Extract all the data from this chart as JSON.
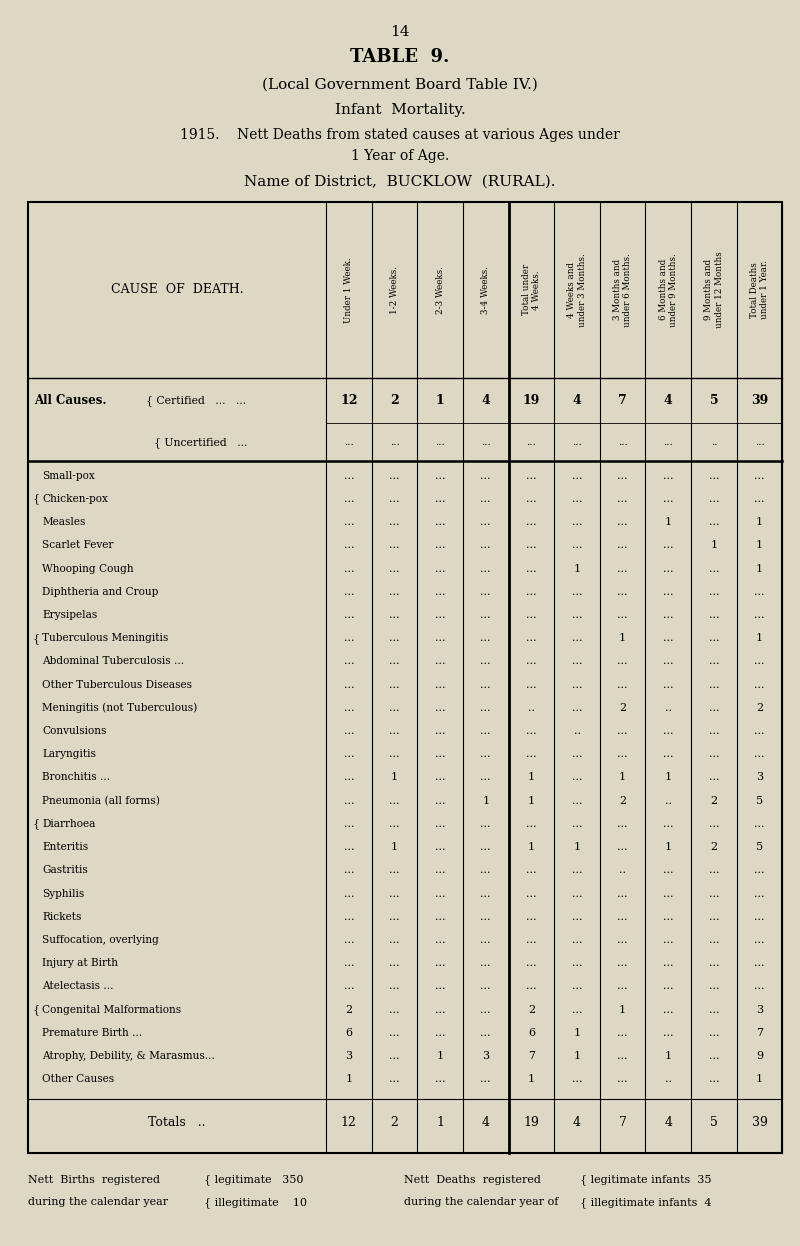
{
  "page_number": "14",
  "title1": "TABLE  9.",
  "title2": "(Local Government Board Table IV.)",
  "title3": "Infant  Mortality.",
  "title4": "1915.    Nett Deaths from stated causes at various Ages under",
  "title4b": "1 Year of Age.",
  "title5": "Name of District,  BUCKLOW  (RURAL).",
  "bg_color": "#ddd8c4",
  "col_headers": [
    "Under 1 Week.",
    "1-2 Weeks.",
    "2-3 Weeks.",
    "3-4 Weeks.",
    "Total under\n4 Weeks.",
    "4 Weeks and\nunder 3 Months.",
    "3 Months and\nunder 6 Months.",
    "6 Months and\nunder 9 Months.",
    "9 Months and\nunder 12 Months",
    "Total Deaths\nunder 1 Year."
  ],
  "cause_rows": [
    {
      "cause": "Small-pox",
      "vals": [
        "...",
        "...",
        "...",
        "...",
        "...",
        "...",
        "...",
        "...",
        "...",
        "..."
      ],
      "bracket": "none"
    },
    {
      "cause": "Chicken-pox",
      "vals": [
        "...",
        "...",
        "...",
        "...",
        "...",
        "...",
        "...",
        "...",
        "...",
        "..."
      ],
      "bracket": "top"
    },
    {
      "cause": "Measles",
      "vals": [
        "...",
        "...",
        "...",
        "...",
        "...",
        "...",
        "...",
        "1",
        "...",
        "1"
      ],
      "bracket": "mid"
    },
    {
      "cause": "Scarlet Fever",
      "vals": [
        "...",
        "...",
        "...",
        "...",
        "...",
        "...",
        "...",
        "...",
        "1",
        "1"
      ],
      "bracket": "mid"
    },
    {
      "cause": "Whooping Cough",
      "vals": [
        "...",
        "...",
        "...",
        "...",
        "...",
        "1",
        "...",
        "...",
        "...",
        "1"
      ],
      "bracket": "bot"
    },
    {
      "cause": "Diphtheria and Croup",
      "vals": [
        "...",
        "...",
        "...",
        "...",
        "...",
        "...",
        "...",
        "...",
        "...",
        "..."
      ],
      "bracket": "none"
    },
    {
      "cause": "Erysipelas",
      "vals": [
        "...",
        "...",
        "...",
        "...",
        "...",
        "...",
        "...",
        "...",
        "...",
        "..."
      ],
      "bracket": "none"
    },
    {
      "cause": "Tuberculous Meningitis",
      "vals": [
        "...",
        "...",
        "...",
        "...",
        "...",
        "...",
        "1",
        "...",
        "...",
        "1"
      ],
      "bracket": "top"
    },
    {
      "cause": "Abdominal Tuberculosis ...",
      "vals": [
        "...",
        "...",
        "...",
        "...",
        "...",
        "...",
        "...",
        "...",
        "...",
        "..."
      ],
      "bracket": "mid"
    },
    {
      "cause": "Other Tuberculous Diseases",
      "vals": [
        "...",
        "...",
        "...",
        "...",
        "...",
        "...",
        "...",
        "...",
        "...",
        "..."
      ],
      "bracket": "bot"
    },
    {
      "cause": "Meningitis (not Tuberculous)",
      "vals": [
        "...",
        "...",
        "...",
        "...",
        "..",
        "...",
        "2",
        "..",
        "...",
        "2"
      ],
      "bracket": "none"
    },
    {
      "cause": "Convulsions",
      "vals": [
        "...",
        "...",
        "...",
        "...",
        "...",
        "..",
        "...",
        "...",
        "...",
        "..."
      ],
      "bracket": "none"
    },
    {
      "cause": "Laryngitis",
      "vals": [
        "...",
        "...",
        "...",
        "...",
        "...",
        "...",
        "...",
        "...",
        "...",
        "..."
      ],
      "bracket": "none"
    },
    {
      "cause": "Bronchitis ...",
      "vals": [
        "...",
        "1",
        "...",
        "...",
        "1",
        "...",
        "1",
        "1",
        "...",
        "3"
      ],
      "bracket": "none"
    },
    {
      "cause": "Pneumonia (all forms)",
      "vals": [
        "...",
        "...",
        "...",
        "1",
        "1",
        "...",
        "2",
        "..",
        "2",
        "5"
      ],
      "bracket": "none"
    },
    {
      "cause": "Diarrhoea",
      "vals": [
        "...",
        "...",
        "...",
        "...",
        "...",
        "...",
        "...",
        "...",
        "...",
        "..."
      ],
      "bracket": "top"
    },
    {
      "cause": "Enteritis",
      "vals": [
        "...",
        "1",
        "...",
        "...",
        "1",
        "1",
        "...",
        "1",
        "2",
        "5"
      ],
      "bracket": "bot"
    },
    {
      "cause": "Gastritis",
      "vals": [
        "...",
        "...",
        "...",
        "...",
        "...",
        "...",
        "..",
        "...",
        "...",
        "..."
      ],
      "bracket": "none"
    },
    {
      "cause": "Syphilis",
      "vals": [
        "...",
        "...",
        "...",
        "...",
        "...",
        "...",
        "...",
        "...",
        "...",
        "..."
      ],
      "bracket": "none"
    },
    {
      "cause": "Rickets",
      "vals": [
        "...",
        "...",
        "...",
        "...",
        "...",
        "...",
        "...",
        "...",
        "...",
        "..."
      ],
      "bracket": "none"
    },
    {
      "cause": "Suffocation, overlying",
      "vals": [
        "...",
        "...",
        "...",
        "...",
        "...",
        "...",
        "...",
        "...",
        "...",
        "..."
      ],
      "bracket": "none"
    },
    {
      "cause": "Injury at Birth",
      "vals": [
        "...",
        "...",
        "...",
        "...",
        "...",
        "...",
        "...",
        "...",
        "...",
        "..."
      ],
      "bracket": "none"
    },
    {
      "cause": "Atelectasis ...",
      "vals": [
        "...",
        "...",
        "...",
        "...",
        "...",
        "...",
        "...",
        "...",
        "...",
        "..."
      ],
      "bracket": "none"
    },
    {
      "cause": "Congenital Malformations",
      "vals": [
        "2",
        "...",
        "...",
        "...",
        "2",
        "...",
        "1",
        "...",
        "...",
        "3"
      ],
      "bracket": "top"
    },
    {
      "cause": "Premature Birth ...",
      "vals": [
        "6",
        "...",
        "...",
        "...",
        "6",
        "1",
        "...",
        "...",
        "...",
        "7"
      ],
      "bracket": "mid"
    },
    {
      "cause": "Atrophy, Debility, & Marasmus...",
      "vals": [
        "3",
        "...",
        "1",
        "3",
        "7",
        "1",
        "...",
        "1",
        "...",
        "9"
      ],
      "bracket": "bot"
    },
    {
      "cause": "Other Causes",
      "vals": [
        "1",
        "...",
        "...",
        "...",
        "1",
        "...",
        "...",
        "..",
        "...",
        "1"
      ],
      "bracket": "none"
    }
  ],
  "all_causes_certified": [
    "12",
    "2",
    "1",
    "4",
    "19",
    "4",
    "7",
    "4",
    "5",
    "39"
  ],
  "all_causes_uncertified": [
    "...",
    "...",
    "...",
    "...",
    "...",
    "...",
    "...",
    "...",
    "..",
    "..."
  ],
  "totals": [
    "12",
    "2",
    "1",
    "4",
    "19",
    "4",
    "7",
    "4",
    "5",
    "39"
  ],
  "footer": [
    [
      "Nett  Births  registered",
      "{ legitimate   350",
      "Nett  Deaths  registered",
      "{ legitimate infants  35"
    ],
    [
      "during the calendar year",
      "{ illegitimate    10",
      "during the calendar year of",
      "{ illegitimate infants  4"
    ]
  ]
}
